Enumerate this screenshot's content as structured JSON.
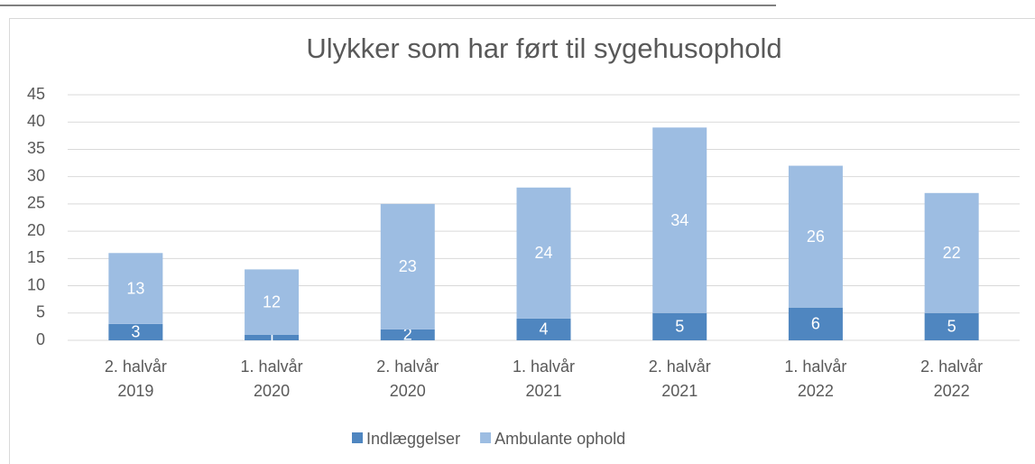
{
  "chart_data": {
    "type": "stacked_bar",
    "title": "Ulykker som har ført til sygehusophold",
    "categories": [
      "2. halvår\n2019",
      "1. halvår\n2020",
      "2. halvår\n2020",
      "1. halvår\n2021",
      "2. halvår\n2021",
      "1. halvår\n2022",
      "2. halvår\n2022"
    ],
    "series": [
      {
        "name": "Indlæggelser",
        "color": "#4f86c0",
        "values": [
          3,
          1,
          2,
          4,
          5,
          6,
          5
        ]
      },
      {
        "name": "Ambulante ophold",
        "color": "#9dbde2",
        "values": [
          13,
          12,
          23,
          24,
          34,
          26,
          22
        ]
      }
    ],
    "ylim": [
      0,
      45
    ],
    "yticks": [
      0,
      5,
      10,
      15,
      20,
      25,
      30,
      35,
      40,
      45
    ],
    "grid": true,
    "legend": "bottom"
  }
}
